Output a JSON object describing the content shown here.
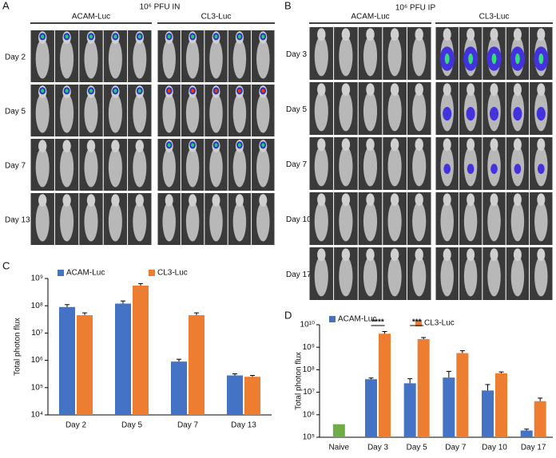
{
  "image_panels": [
    {
      "label": "A",
      "title": "10⁶ PFU IN",
      "groups": [
        "ACAM-Luc",
        "CL3-Luc"
      ],
      "rows": [
        "Day 2",
        "Day 5",
        "Day 7",
        "Day 13"
      ]
    },
    {
      "label": "B",
      "title": "10⁶ PFU IP",
      "groups": [
        "ACAM-Luc",
        "CL3-Luc"
      ],
      "rows": [
        "Day 3",
        "Day 5",
        "Day 7",
        "Day 10",
        "Day 17"
      ]
    }
  ],
  "chart_data": [
    {
      "panel_label": "C",
      "type": "bar",
      "y_label": "Total photon flux",
      "log_scale": true,
      "categories": [
        "Day 2",
        "Day 5",
        "Day 7",
        "Day 13"
      ],
      "series": [
        {
          "name": "ACAM-Luc",
          "color": "#4472c4",
          "values": [
            90000000,
            120000000,
            900000,
            280000
          ],
          "errors": [
            20000000,
            30000000,
            200000,
            40000
          ]
        },
        {
          "name": "CL3-Luc",
          "color": "#ed7d31",
          "values": [
            45000000,
            550000000,
            45000000,
            250000
          ],
          "errors": [
            10000000,
            100000000,
            10000000,
            30000
          ]
        }
      ],
      "ylim": [
        10000,
        1000000000
      ],
      "yticks": [
        {
          "value": 10000,
          "label": "10⁴"
        },
        {
          "value": 100000,
          "label": "10⁵"
        },
        {
          "value": 1000000,
          "label": "10⁶"
        },
        {
          "value": 10000000,
          "label": "10⁷"
        },
        {
          "value": 100000000,
          "label": "10⁸"
        },
        {
          "value": 1000000000,
          "label": "10⁹"
        }
      ]
    },
    {
      "panel_label": "D",
      "type": "bar",
      "y_label": "Total photon flux",
      "log_scale": true,
      "categories": [
        "Naive",
        "Day 3",
        "Day 5",
        "Day 7",
        "Day 10",
        "Day 17"
      ],
      "series": [
        {
          "color": "#70ad47",
          "values": [
            380000,
            null,
            null,
            null,
            null,
            null
          ]
        },
        {
          "name": "ACAM-Luc",
          "color": "#4472c4",
          "values": [
            null,
            38000000,
            25000000,
            45000000,
            12000000,
            200000
          ],
          "errors": [
            null,
            5000000,
            15000000,
            40000000,
            10000000,
            30000
          ]
        },
        {
          "name": "CL3-Luc",
          "color": "#ed7d31",
          "values": [
            null,
            4000000000,
            2300000000,
            550000000,
            70000000,
            4000000
          ],
          "errors": [
            null,
            1000000000,
            400000000,
            150000000,
            10000000,
            1500000
          ]
        }
      ],
      "annotations": [
        {
          "text": "****",
          "category": "Day 3"
        },
        {
          "text": "***",
          "category": "Day 5"
        }
      ],
      "ylim": [
        100000,
        10000000000
      ],
      "yticks": [
        {
          "value": 100000,
          "label": "10⁵"
        },
        {
          "value": 1000000,
          "label": "10⁶"
        },
        {
          "value": 10000000,
          "label": "10⁷"
        },
        {
          "value": 100000000,
          "label": "10⁸"
        },
        {
          "value": 1000000000,
          "label": "10⁹"
        },
        {
          "value": 10000000000,
          "label": "10¹⁰"
        }
      ]
    }
  ]
}
